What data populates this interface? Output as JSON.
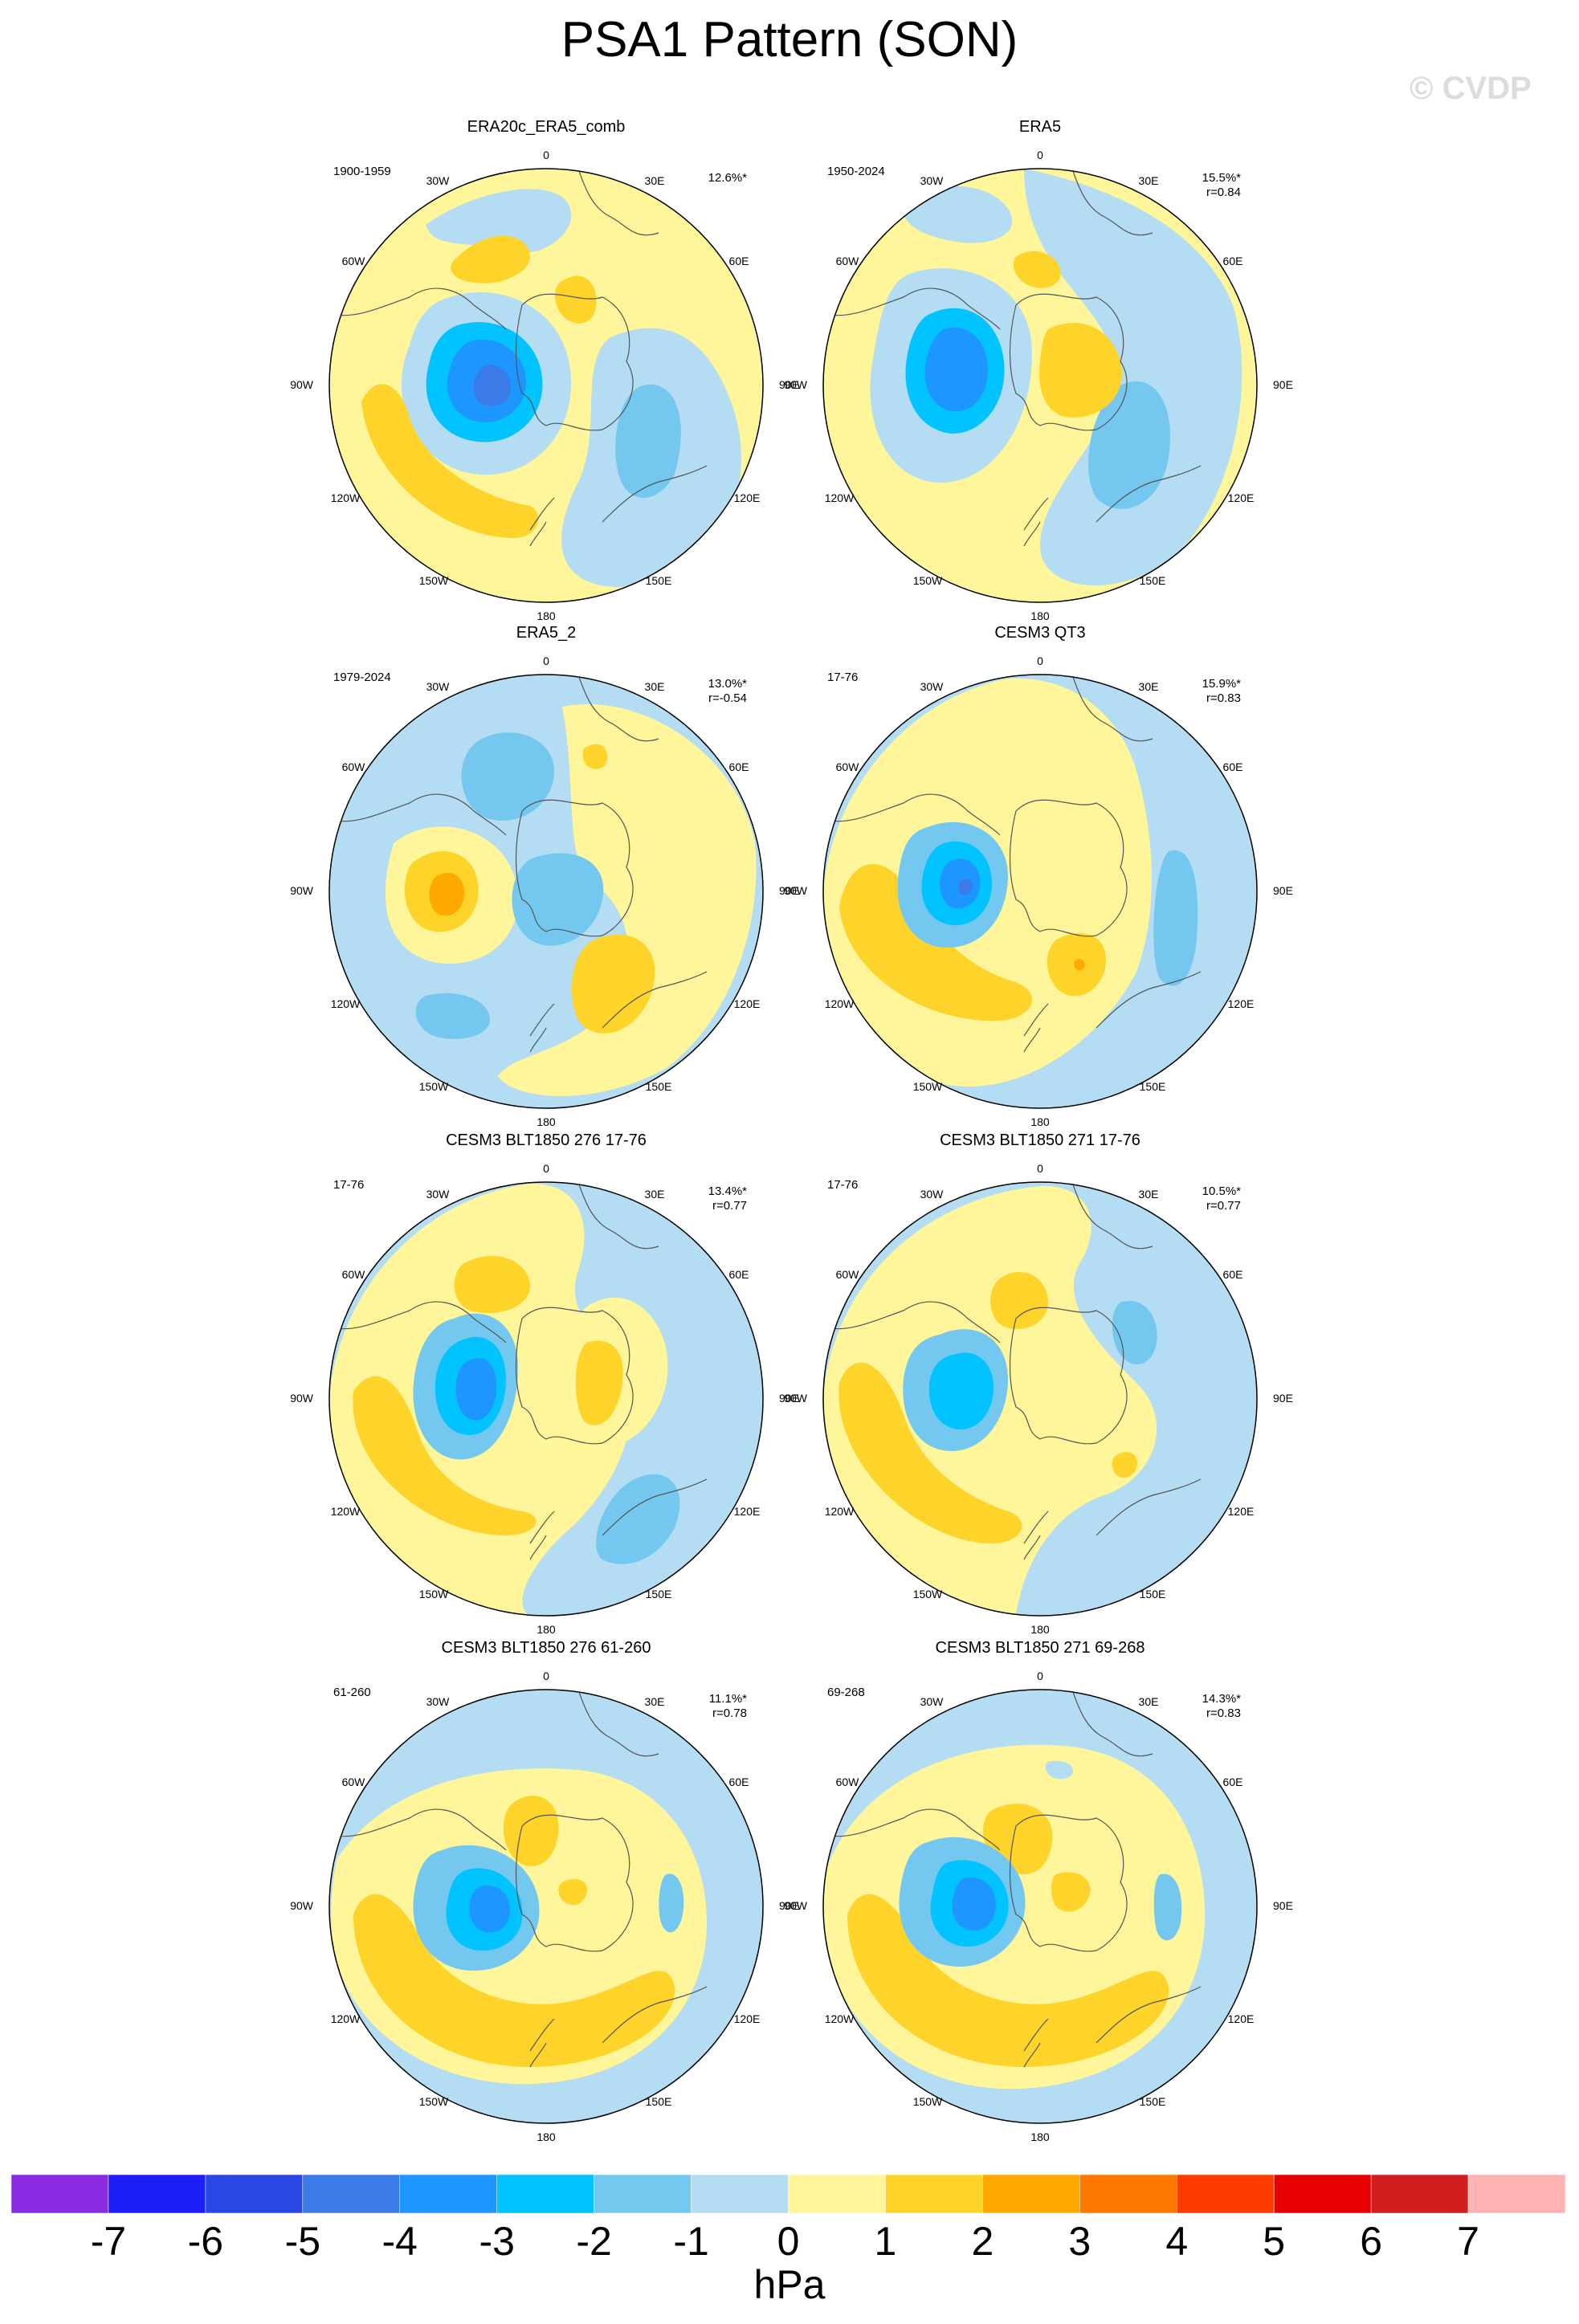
{
  "title": "PSA1 Pattern (SON)",
  "watermark": "© CVDP",
  "colors": {
    "levels": [
      "#8a2be2",
      "#1e1efa",
      "#2a48e6",
      "#3b7be8",
      "#1e96ff",
      "#00c3ff",
      "#74c8f0",
      "#b4dcf2",
      "#fff59a",
      "#ffd42a",
      "#ffaa00",
      "#ff7800",
      "#ff3c00",
      "#e60000",
      "#d21e1e",
      "#ffb3b3"
    ],
    "land_outline": "#555555"
  },
  "panels": [
    {
      "title": "ERA20c_ERA5_comb",
      "period": "1900-1959",
      "stats": "12.6%*",
      "corr": ""
    },
    {
      "title": "ERA5",
      "period": "1950-2024",
      "stats": "15.5%*",
      "corr": "r=0.84"
    },
    {
      "title": "ERA5_2",
      "period": "1979-2024",
      "stats": "13.0%*",
      "corr": "r=-0.54"
    },
    {
      "title": "CESM3 QT3",
      "period": "17-76",
      "stats": "15.9%*",
      "corr": "r=0.83"
    },
    {
      "title": "CESM3 BLT1850 276 17-76",
      "period": "17-76",
      "stats": "13.4%*",
      "corr": "r=0.77"
    },
    {
      "title": "CESM3 BLT1850 271 17-76",
      "period": "17-76",
      "stats": "10.5%*",
      "corr": "r=0.77"
    },
    {
      "title": "CESM3 BLT1850 276 61-260",
      "period": "61-260",
      "stats": "11.1%*",
      "corr": "r=0.78"
    },
    {
      "title": "CESM3 BLT1850 271 69-268",
      "period": "69-268",
      "stats": "14.3%*",
      "corr": "r=0.83"
    }
  ],
  "lon_labels": {
    "top": "0",
    "top_left": "30W",
    "top_right": "30E",
    "upper_left": "60W",
    "upper_right": "60E",
    "left": "90W",
    "right": "90E",
    "lower_left": "120W",
    "lower_right": "120E",
    "bottom_left": "150W",
    "bottom_right": "150E",
    "bottom": "180"
  },
  "colorbar": {
    "tick_labels": [
      "-7",
      "-6",
      "-5",
      "-4",
      "-3",
      "-2",
      "-1",
      "0",
      "1",
      "2",
      "3",
      "4",
      "5",
      "6",
      "7"
    ],
    "units": "hPa"
  }
}
